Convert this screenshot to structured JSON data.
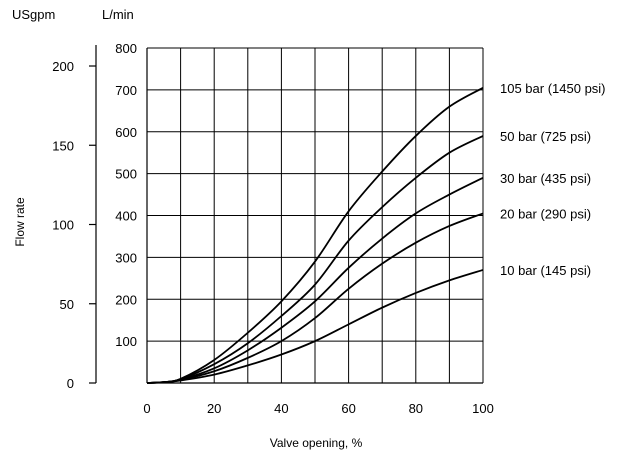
{
  "chart_data": {
    "type": "line",
    "xlabel": "Valve opening, %",
    "ylabel": "Flow rate",
    "left_unit": "USgpm",
    "right_unit": "L/min",
    "xlim": [
      0,
      100
    ],
    "ylim": [
      0,
      800
    ],
    "x_ticks": [
      "0",
      "20",
      "40",
      "60",
      "80",
      "100"
    ],
    "lmin_ticks": [
      "100",
      "200",
      "300",
      "400",
      "500",
      "600",
      "700",
      "800"
    ],
    "usgpm_ticks": [
      "0",
      "50",
      "100",
      "150",
      "200"
    ],
    "grid": true,
    "series": [
      {
        "name": "105 bar (1450 psi)",
        "x": [
          0,
          5,
          10,
          20,
          30,
          40,
          50,
          60,
          70,
          80,
          90,
          100
        ],
        "y": [
          0,
          2,
          10,
          55,
          120,
          195,
          290,
          410,
          505,
          590,
          660,
          705
        ]
      },
      {
        "name": "50 bar (725 psi)",
        "x": [
          0,
          5,
          10,
          20,
          30,
          40,
          50,
          60,
          70,
          80,
          90,
          100
        ],
        "y": [
          0,
          2,
          9,
          45,
          95,
          160,
          235,
          340,
          420,
          490,
          550,
          590
        ]
      },
      {
        "name": "30 bar (435 psi)",
        "x": [
          0,
          5,
          10,
          20,
          30,
          40,
          50,
          60,
          70,
          80,
          90,
          100
        ],
        "y": [
          0,
          2,
          8,
          35,
          78,
          132,
          195,
          275,
          345,
          405,
          450,
          490
        ]
      },
      {
        "name": "20 bar (290 psi)",
        "x": [
          0,
          5,
          10,
          20,
          30,
          40,
          50,
          60,
          70,
          80,
          90,
          100
        ],
        "y": [
          0,
          2,
          7,
          28,
          60,
          100,
          155,
          225,
          285,
          335,
          375,
          405
        ]
      },
      {
        "name": "10 bar (145 psi)",
        "x": [
          0,
          5,
          10,
          20,
          30,
          40,
          50,
          60,
          70,
          80,
          90,
          100
        ],
        "y": [
          0,
          2,
          6,
          20,
          42,
          68,
          100,
          140,
          180,
          215,
          245,
          270
        ]
      }
    ]
  }
}
